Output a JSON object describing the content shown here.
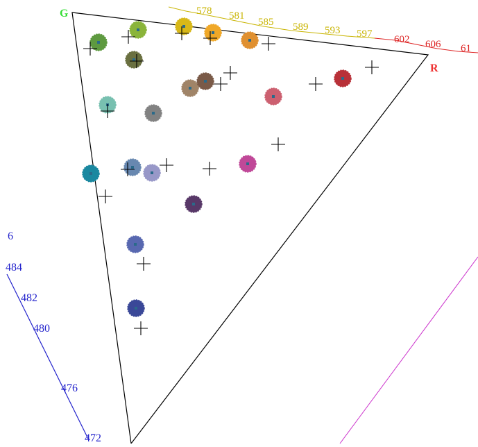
{
  "diagram": {
    "vertex_labels": {
      "g": "G",
      "r": "R"
    },
    "vertex_colors": {
      "g": "#33dd33",
      "r": "#ee3333"
    },
    "locus_colors": {
      "yellow": "#c8b400",
      "red": "#dd2222",
      "blue": "#2222cc",
      "purple": "#cc33cc",
      "triangle": "#000000",
      "cross": "#000000"
    },
    "yellow_ticks": [
      "578",
      "581",
      "585",
      "589",
      "593",
      "597"
    ],
    "red_ticks": [
      "602",
      "606",
      "61"
    ],
    "blue_ticks": [
      "6",
      "484",
      "482",
      "480",
      "476",
      "472"
    ],
    "swatch_colors": [
      "#8ab43a",
      "#5e9a40",
      "#d8b818",
      "#f0a828",
      "#e09030",
      "#6a7040",
      "#b83038",
      "#a08468",
      "#7a5a48",
      "#cc6070",
      "#78c0b0",
      "#828282",
      "#1a88a0",
      "#6888b0",
      "#9898c8",
      "#c04898",
      "#583868",
      "#5868b0",
      "#3a4898"
    ]
  }
}
